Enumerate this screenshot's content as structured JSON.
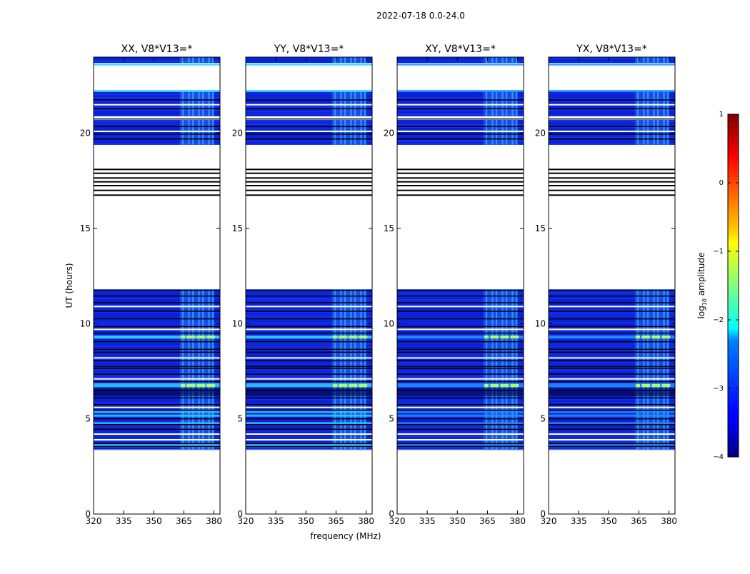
{
  "suptitle": "2022-07-18 0.0-24.0",
  "ylabel": "UT (hours)",
  "xlabel": "frequency (MHz)",
  "colorbar": {
    "label_prefix": "log",
    "label_sub": "10",
    "label_suffix": " amplitude",
    "ticks": [
      1,
      0,
      -1,
      -2,
      -3,
      -4
    ],
    "tick_labels": [
      "1",
      "0",
      "−1",
      "−2",
      "−3",
      "−4"
    ],
    "range": [
      -4,
      1
    ],
    "colormap": "jet"
  },
  "chart_data": {
    "type": "heatmap",
    "x_ticks": [
      320,
      335,
      350,
      365,
      380
    ],
    "y_ticks": [
      0,
      5,
      10,
      15,
      20
    ],
    "xlim": [
      320,
      383
    ],
    "ylim": [
      0,
      24
    ],
    "panels": [
      {
        "title": "XX, V8*V13=*"
      },
      {
        "title": "YY, V8*V13=*"
      },
      {
        "title": "XY, V8*V13=*"
      },
      {
        "title": "YX, V8*V13=*"
      }
    ],
    "data_bands_hours": [
      [
        3.4,
        11.8
      ],
      [
        19.4,
        20.7
      ],
      [
        20.9,
        22.2
      ],
      [
        23.7,
        24.0
      ]
    ],
    "flag_lines_hours": [
      3.55,
      3.7,
      4.45,
      4.7,
      5.0,
      5.45,
      5.75,
      6.1,
      6.5,
      6.95,
      7.35,
      7.65,
      7.75,
      8.05,
      8.5,
      8.65,
      9.05,
      9.5,
      9.85,
      10.25,
      10.65,
      11.1,
      11.45,
      11.75,
      19.7,
      19.95,
      20.35,
      20.75,
      21.3,
      21.75,
      16.75,
      17.0,
      17.25,
      17.45,
      17.65,
      17.9,
      18.1
    ],
    "bright_rows_hours": [
      3.55,
      3.65,
      4.75,
      5.15,
      5.35,
      6.7,
      6.8,
      9.25,
      9.3,
      22.2,
      23.6
    ],
    "rfi_band_mhz": [
      363,
      380
    ],
    "rfi_channels_mhz": [
      364.5,
      367.5,
      369.5,
      372.5,
      374.5,
      377.5,
      379.5
    ]
  }
}
